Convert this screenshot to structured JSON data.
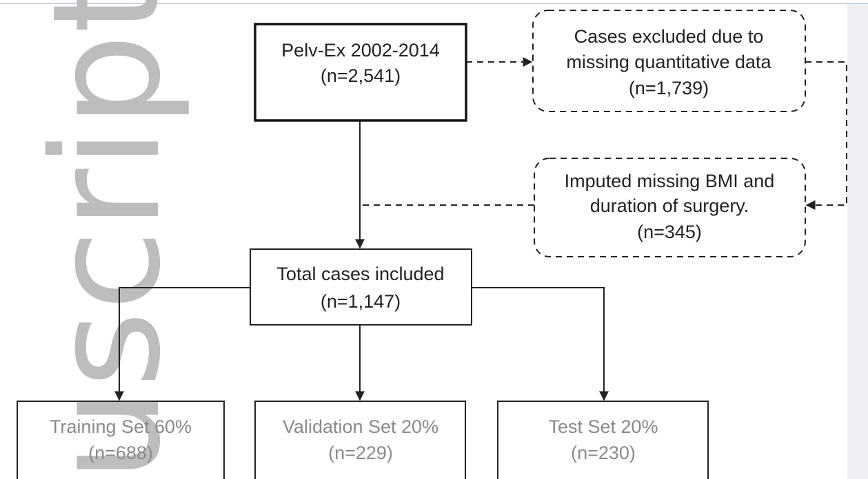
{
  "watermark": "uscript",
  "nodes": [
    {
      "lines": [
        "Pelv-Ex 2002-2014",
        "(n=2,541)"
      ]
    },
    {
      "lines": [
        "Cases excluded due to",
        "missing quantitative data",
        "(n=1,739)"
      ]
    },
    {
      "lines": [
        "Imputed missing BMI and",
        "duration of surgery.",
        "(n=345)"
      ]
    },
    {
      "lines": [
        "Total cases included",
        "(n=1,147)"
      ]
    },
    {
      "lines": [
        "Training Set 60%",
        "(n=688)"
      ]
    },
    {
      "lines": [
        "Validation Set 20%",
        "(n=229)"
      ]
    },
    {
      "lines": [
        "Test Set 20%",
        "(n=230)"
      ]
    }
  ]
}
